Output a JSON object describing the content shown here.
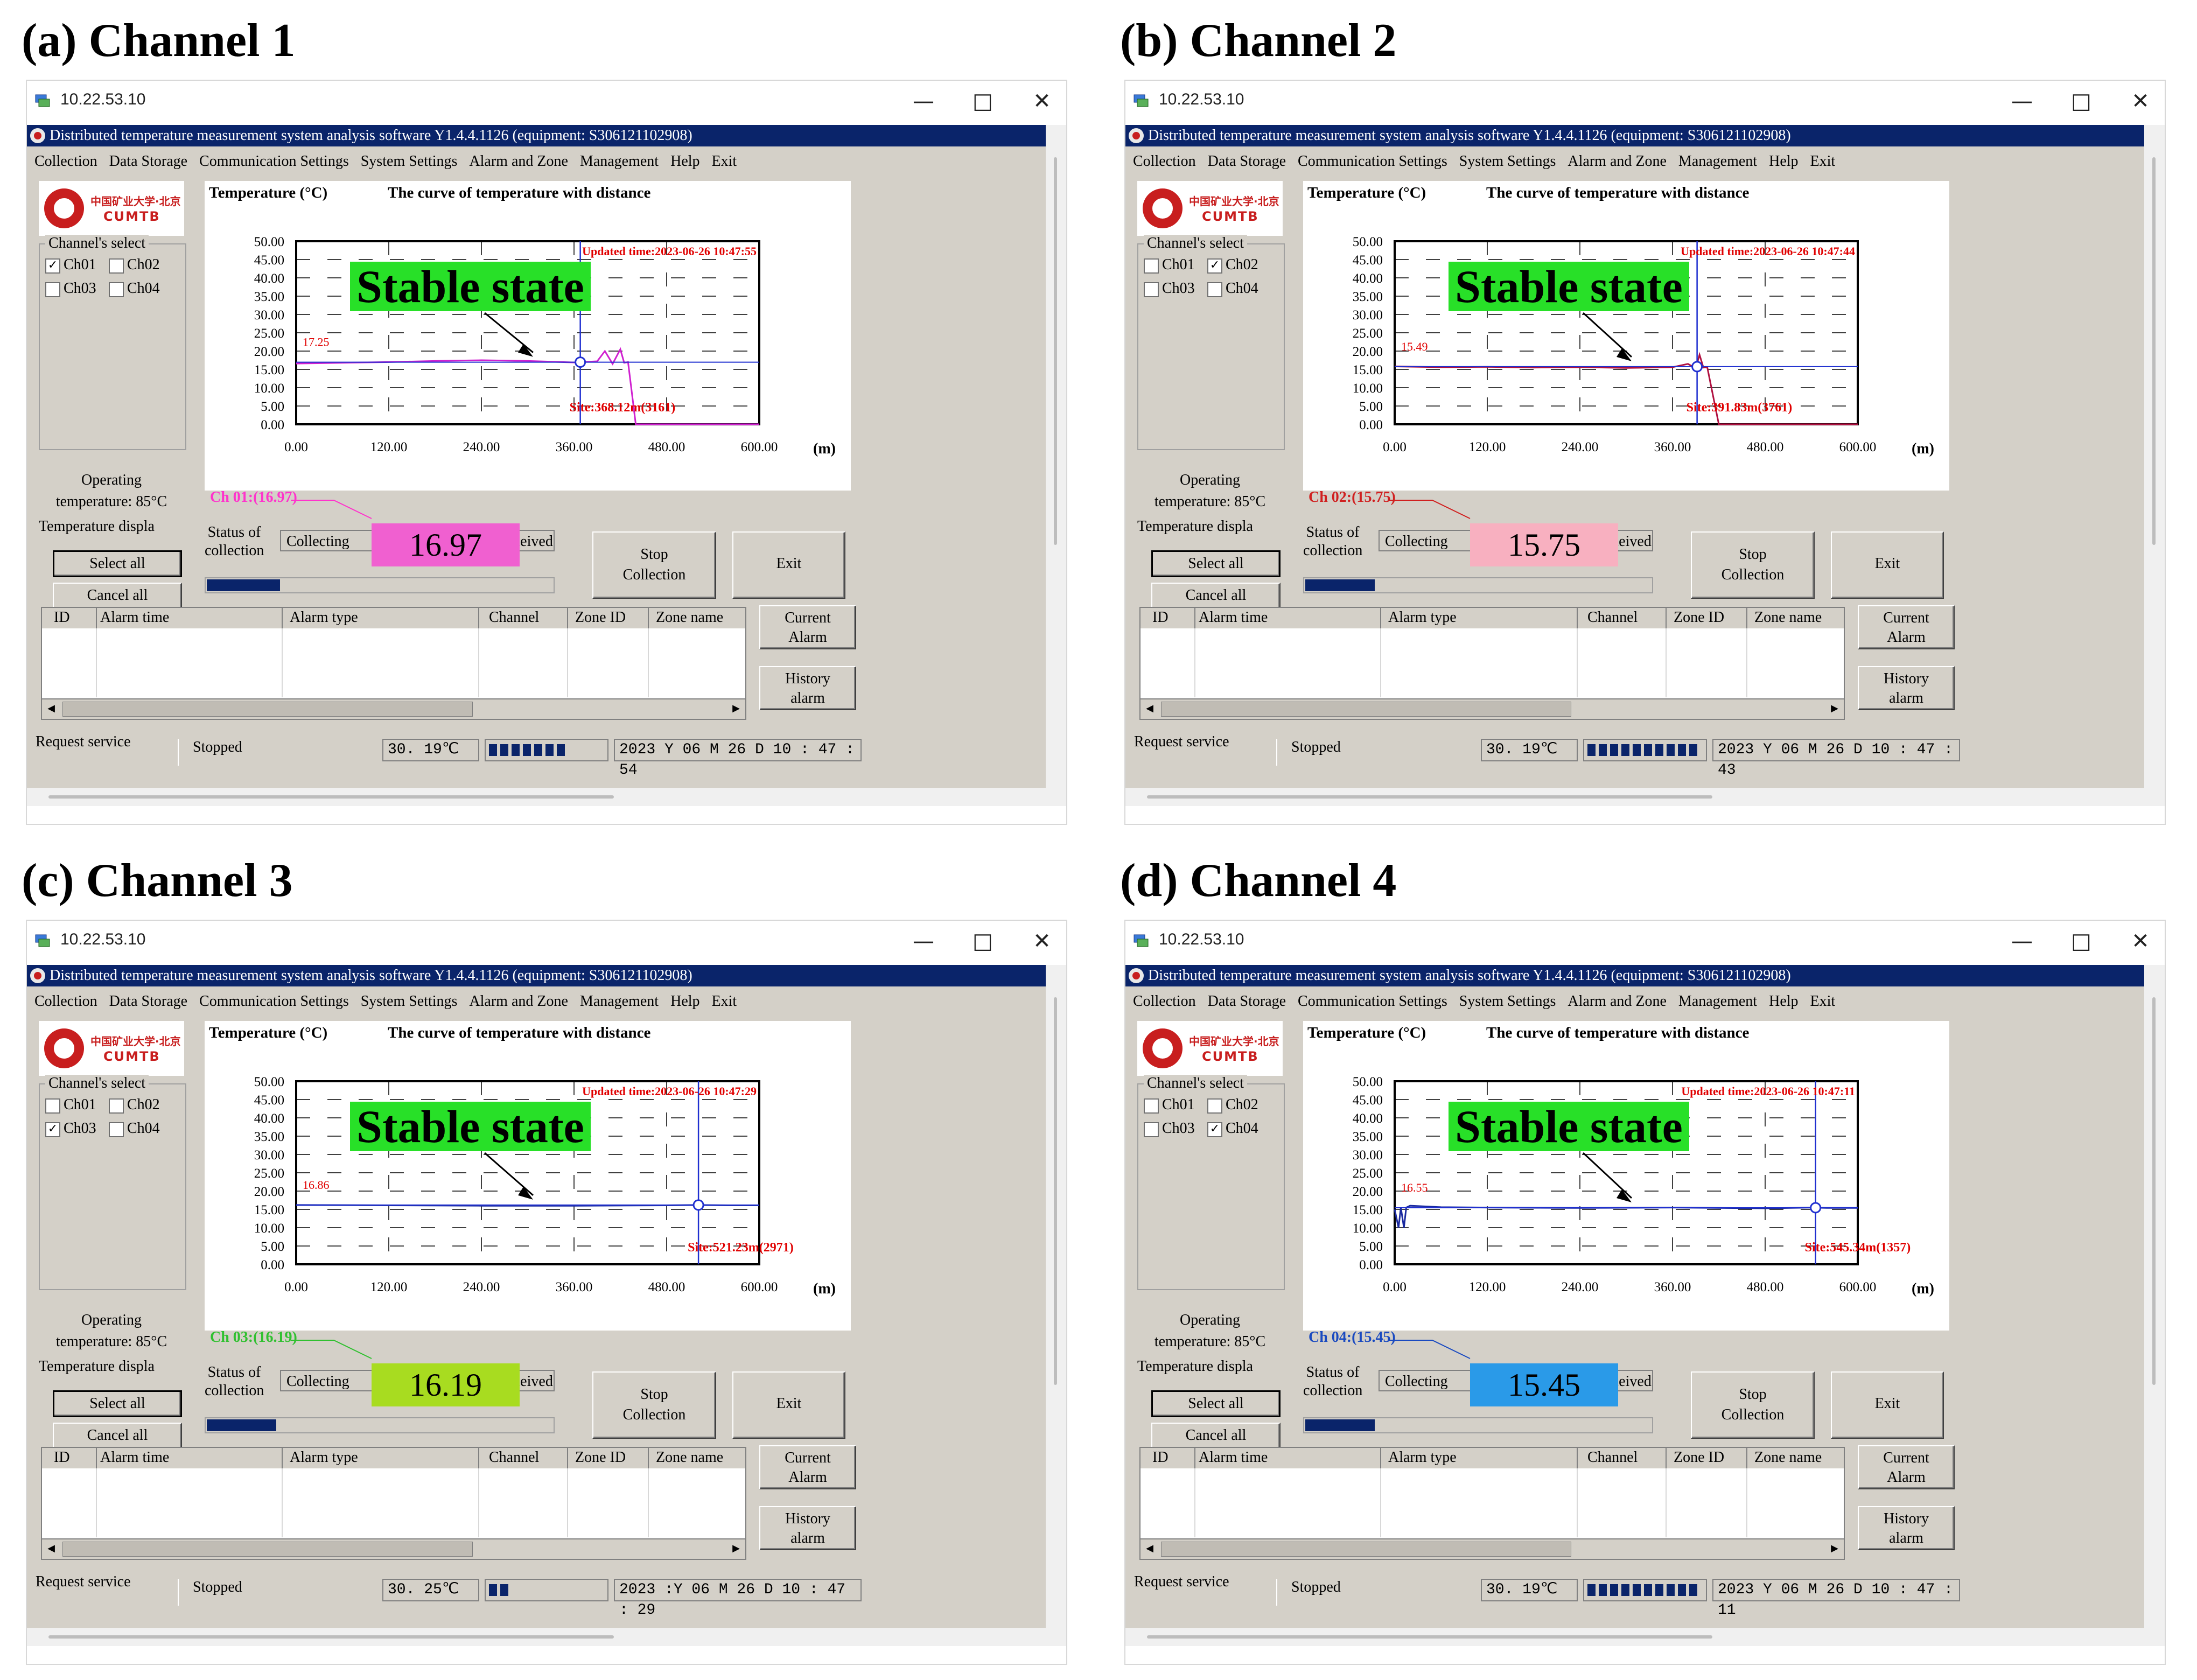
{
  "window_common": {
    "host": "10.22.53.10",
    "app_title": "Distributed temperature measurement system analysis software Y1.4.4.1126 (equipment: S306121102908)",
    "menu": [
      "Collection",
      "Data Storage",
      "Communication Settings",
      "System Settings",
      "Alarm and Zone",
      "Management",
      "Help",
      "Exit"
    ],
    "logo_line1": "中国矿业大学·北京",
    "logo_line2": "CUMTB",
    "channel_select_label": "Channel's select",
    "operating_label": "Operating",
    "operating_temp": "temperature: 85°C",
    "temperature_display_label": "Temperature displa",
    "select_all": "Select all",
    "cancel_all": "Cancel all",
    "status_label_line1": "Status of",
    "status_label_line2": "collection",
    "collecting_text": "Collecting",
    "received_text": "received",
    "stop_collection_line1": "Stop",
    "stop_collection_line2": "Collection",
    "exit_button": "Exit",
    "alarm_columns": [
      "ID",
      "Alarm time",
      "Alarm type",
      "Channel",
      "Zone ID",
      "Zone name"
    ],
    "current_alarm_line1": "Current",
    "current_alarm_line2": "Alarm",
    "history_alarm_line1": "History",
    "history_alarm_line2": "alarm",
    "request_service": "Request service",
    "service_state": "Stopped",
    "plot_ylabel": "Temperature (°C)",
    "plot_title": "The curve of temperature with distance",
    "plot_xunit": "(m)",
    "y_ticks": [
      "50.00",
      "45.00",
      "40.00",
      "35.00",
      "30.00",
      "25.00",
      "20.00",
      "15.00",
      "10.00",
      "5.00",
      "0.00"
    ],
    "x_ticks": [
      "0.00",
      "120.00",
      "240.00",
      "360.00",
      "480.00",
      "600.00"
    ],
    "stable_label": "Stable state",
    "channels": [
      "Ch01",
      "Ch02",
      "Ch03",
      "Ch04"
    ],
    "window_buttons": {
      "minimize": "—",
      "maximize": "□",
      "close": "✕"
    }
  },
  "panels": [
    {
      "heading": "(a) Channel 1",
      "checked": [
        true,
        false,
        false,
        false
      ],
      "ch_label": "Ch 01:(16.97)",
      "ch_label_color": "#ff33cc",
      "value": "16.97",
      "value_bg": "#f060d0",
      "line_color": "#d020d0",
      "start_value_label": "17.25",
      "updated": "Updated time:2023-06-26 10:47:55",
      "site": "Site:368.12m(3161)",
      "progress": 0.21,
      "status_temp": "30. 19℃",
      "segments": 7,
      "date_time": "2023  Y  06  M  26  D    10 : 47 : 54",
      "chart_data": {
        "type": "line",
        "ylabel": "Temperature (°C)",
        "title": "The curve of temperature with distance",
        "xlabel": "(m)",
        "xlim": [
          0,
          600
        ],
        "ylim": [
          0,
          50
        ],
        "series": [
          {
            "name": "Ch 01",
            "x": [
              0,
              60,
              120,
              180,
              240,
              300,
              360,
              390,
              400,
              410,
              420,
              425,
              430,
              440,
              600
            ],
            "y": [
              16.6,
              16.8,
              17.0,
              17.3,
              17.5,
              17.3,
              16.9,
              17.2,
              20.0,
              16.5,
              20.5,
              16.8,
              17.0,
              0,
              0
            ]
          }
        ]
      }
    },
    {
      "heading": "(b) Channel 2",
      "checked": [
        false,
        true,
        false,
        false
      ],
      "ch_label": "Ch 02:(15.75)",
      "ch_label_color": "#d02020",
      "value": "15.75",
      "value_bg": "#f8b0c0",
      "line_color": "#b01040",
      "start_value_label": "15.49",
      "updated": "Updated time:2023-06-26 10:47:44",
      "site": "Site:391.83m(3761)",
      "progress": 0.2,
      "status_temp": "30. 19℃",
      "segments": 10,
      "date_time": "2023  Y  06  M  26  D    10 : 47 : 43",
      "chart_data": {
        "type": "line",
        "ylabel": "Temperature (°C)",
        "title": "The curve of temperature with distance",
        "xlabel": "(m)",
        "xlim": [
          0,
          600
        ],
        "ylim": [
          0,
          50
        ],
        "series": [
          {
            "name": "Ch 02",
            "x": [
              0,
              60,
              120,
              180,
              240,
              300,
              360,
              380,
              390,
              395,
              400,
              405,
              420,
              600
            ],
            "y": [
              15.8,
              15.6,
              15.7,
              15.5,
              15.6,
              15.4,
              15.6,
              16.5,
              15.3,
              19.0,
              15.5,
              15.6,
              0,
              0
            ]
          }
        ]
      }
    },
    {
      "heading": "(c) Channel 3",
      "checked": [
        false,
        false,
        true,
        false
      ],
      "ch_label": "Ch 03:(16.19)",
      "ch_label_color": "#30c030",
      "value": "16.19",
      "value_bg": "#a8dc20",
      "line_color": "#1a2a9a",
      "start_value_label": "16.86",
      "updated": "Updated time:2023-06-26 10:47:29",
      "site": "Site:521.23m(2971)",
      "progress": 0.2,
      "status_temp": "30. 25℃",
      "segments": 2,
      "date_time": "2023  :Y  06  M 26   D   10 : 47 : 29",
      "chart_data": {
        "type": "line",
        "ylabel": "Temperature (°C)",
        "title": "The curve of temperature with distance",
        "xlabel": "(m)",
        "xlim": [
          0,
          600
        ],
        "ylim": [
          0,
          50
        ],
        "series": [
          {
            "name": "Ch 03",
            "x": [
              0,
              120,
              240,
              360,
              480,
              520,
              560,
              600
            ],
            "y": [
              16.2,
              16.1,
              16.0,
              16.0,
              16.1,
              16.2,
              16.1,
              16.1
            ]
          }
        ]
      }
    },
    {
      "heading": "(d) Channel 4",
      "checked": [
        false,
        false,
        false,
        true
      ],
      "ch_label": "Ch 04:(15.45)",
      "ch_label_color": "#1a4ac0",
      "value": "15.45",
      "value_bg": "#2a9ae8",
      "line_color": "#1a2aa0",
      "start_value_label": "16.55",
      "updated": "Updated time:2023-06-26 10:47:11",
      "site": "Site:545.34m(1357)",
      "progress": 0.2,
      "status_temp": "30. 19℃",
      "segments": 10,
      "date_time": "2023  Y  06  M  26  D    10 : 47 : 11",
      "chart_data": {
        "type": "line",
        "ylabel": "Temperature (°C)",
        "title": "The curve of temperature with distance",
        "xlabel": "(m)",
        "xlim": [
          0,
          600
        ],
        "ylim": [
          0,
          50
        ],
        "series": [
          {
            "name": "Ch 04",
            "x": [
              0,
              5,
              8,
              12,
              15,
              20,
              60,
              120,
              240,
              360,
              480,
              540,
              560,
              600
            ],
            "y": [
              15.0,
              10.0,
              15.5,
              10.0,
              15.5,
              16.0,
              15.6,
              15.5,
              15.4,
              15.5,
              15.3,
              15.5,
              15.4,
              15.4
            ]
          }
        ]
      }
    }
  ]
}
